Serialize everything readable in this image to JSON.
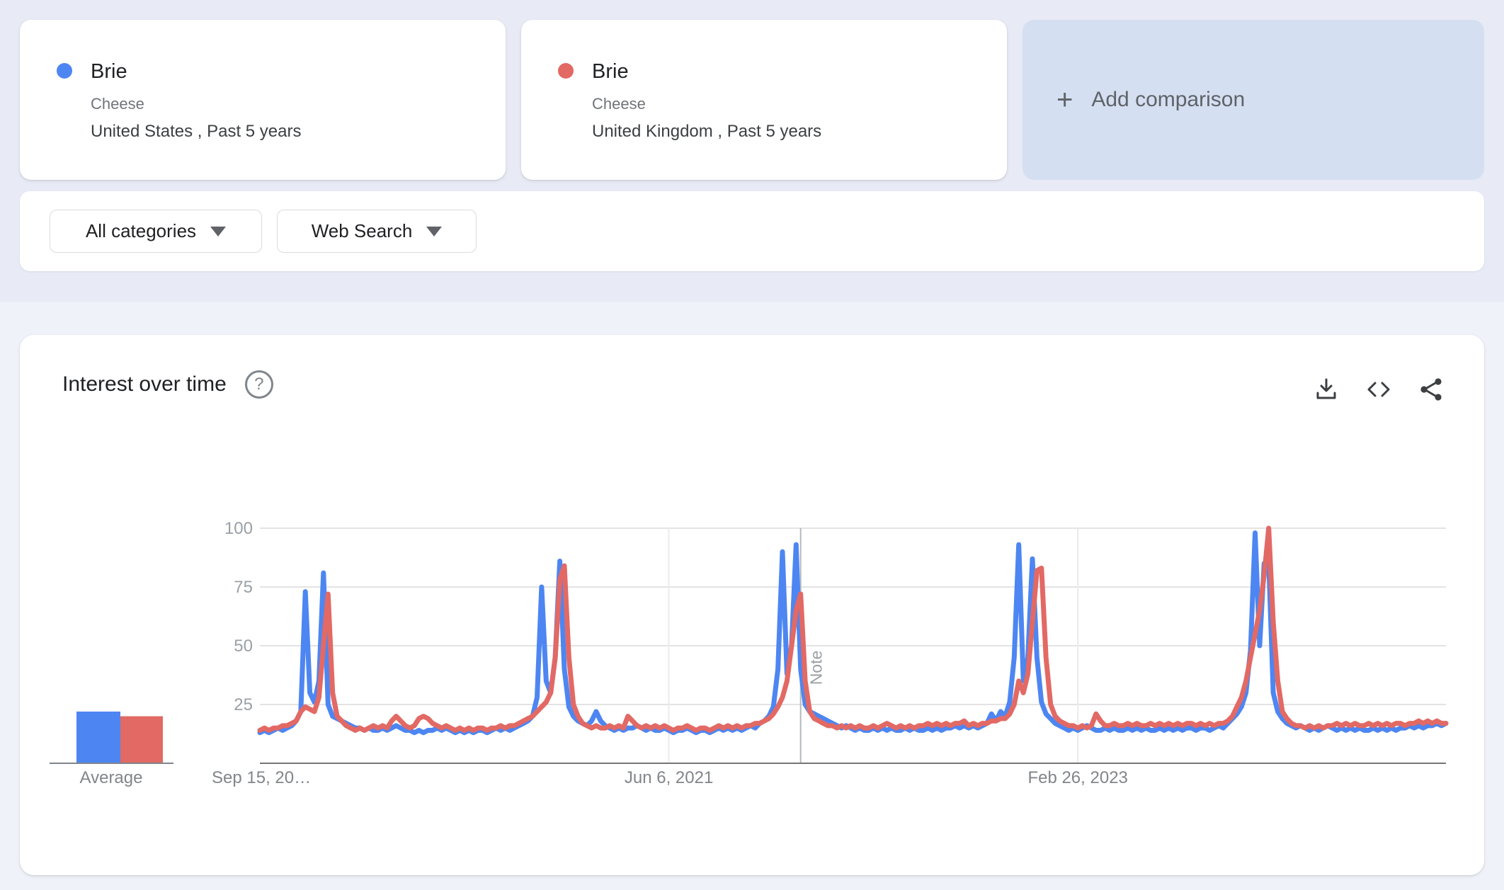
{
  "terms": [
    {
      "keyword": "Brie",
      "topic_type": "Cheese",
      "scope": "United States , Past 5 years",
      "color": "#4d86f2"
    },
    {
      "keyword": "Brie",
      "topic_type": "Cheese",
      "scope": "United Kingdom , Past 5 years",
      "color": "#e26964"
    }
  ],
  "add_comparison": {
    "plus": "+",
    "label": "Add comparison",
    "background": "#d5dff2"
  },
  "filters": {
    "category": "All categories",
    "search_type": "Web Search"
  },
  "chart_card": {
    "title": "Interest over time",
    "help_icon": "?",
    "toolbar_icons": [
      "download-icon",
      "embed-icon",
      "share-icon"
    ]
  },
  "average_module": {
    "label": "Average",
    "bars": [
      {
        "name": "Brie United States",
        "value": 22,
        "color": "#4d86f2"
      },
      {
        "name": "Brie United Kingdom",
        "value": 20,
        "color": "#e26964"
      }
    ]
  },
  "chart_data": {
    "type": "line",
    "title": "Interest over time",
    "ylabel": "",
    "xlabel": "",
    "ylim": [
      0,
      100
    ],
    "y_ticks": [
      25,
      50,
      75,
      100
    ],
    "grid": true,
    "legend_position": "none",
    "x_tick_labels": [
      "Sep 15, 20…",
      "Jun 6, 2021",
      "Feb 26, 2023"
    ],
    "x_tick_positions": [
      0,
      90,
      180
    ],
    "note_annotation": {
      "label": "Note",
      "position": 119
    },
    "series": [
      {
        "name": "Brie · United States",
        "color": "#4d86f2",
        "values": [
          13,
          14,
          13,
          14,
          15,
          14,
          15,
          16,
          18,
          22,
          73,
          30,
          26,
          35,
          81,
          25,
          20,
          19,
          18,
          17,
          16,
          15,
          15,
          14,
          15,
          14,
          14,
          15,
          14,
          15,
          16,
          15,
          14,
          14,
          13,
          14,
          13,
          14,
          14,
          15,
          14,
          15,
          14,
          13,
          14,
          13,
          14,
          13,
          14,
          14,
          13,
          14,
          15,
          14,
          15,
          14,
          15,
          16,
          17,
          18,
          20,
          28,
          75,
          35,
          30,
          45,
          86,
          40,
          24,
          20,
          18,
          17,
          16,
          18,
          22,
          18,
          16,
          15,
          14,
          15,
          14,
          15,
          15,
          16,
          15,
          14,
          15,
          14,
          14,
          15,
          14,
          13,
          14,
          14,
          15,
          14,
          13,
          14,
          14,
          13,
          14,
          15,
          14,
          15,
          14,
          15,
          14,
          15,
          16,
          15,
          17,
          18,
          20,
          24,
          40,
          90,
          38,
          50,
          93,
          40,
          25,
          22,
          21,
          20,
          19,
          18,
          17,
          16,
          15,
          16,
          15,
          14,
          15,
          14,
          14,
          15,
          14,
          15,
          14,
          15,
          14,
          14,
          15,
          14,
          15,
          14,
          14,
          15,
          14,
          15,
          14,
          15,
          15,
          16,
          15,
          16,
          15,
          16,
          15,
          16,
          17,
          21,
          18,
          22,
          20,
          26,
          45,
          93,
          35,
          45,
          87,
          45,
          26,
          21,
          19,
          17,
          16,
          15,
          14,
          15,
          14,
          15,
          16,
          15,
          14,
          14,
          15,
          14,
          15,
          14,
          14,
          15,
          14,
          15,
          14,
          15,
          14,
          14,
          15,
          14,
          15,
          14,
          15,
          14,
          15,
          15,
          14,
          15,
          15,
          14,
          15,
          16,
          15,
          17,
          19,
          21,
          24,
          30,
          48,
          98,
          50,
          85,
          86,
          30,
          22,
          19,
          17,
          16,
          15,
          16,
          15,
          14,
          15,
          14,
          15,
          16,
          15,
          14,
          15,
          14,
          15,
          14,
          15,
          14,
          14,
          15,
          14,
          15,
          14,
          15,
          14,
          15,
          15,
          16,
          15,
          16,
          15,
          16,
          16,
          17,
          16,
          17
        ]
      },
      {
        "name": "Brie · United Kingdom",
        "color": "#e26964",
        "values": [
          14,
          15,
          14,
          15,
          15,
          16,
          16,
          17,
          18,
          22,
          24,
          23,
          22,
          28,
          50,
          72,
          30,
          20,
          18,
          16,
          15,
          14,
          15,
          14,
          15,
          16,
          15,
          16,
          15,
          18,
          20,
          18,
          16,
          15,
          16,
          19,
          20,
          19,
          17,
          16,
          15,
          16,
          15,
          14,
          15,
          14,
          15,
          14,
          15,
          15,
          14,
          15,
          15,
          16,
          15,
          16,
          16,
          17,
          18,
          19,
          20,
          22,
          24,
          26,
          30,
          45,
          78,
          84,
          45,
          25,
          20,
          17,
          16,
          15,
          16,
          15,
          15,
          16,
          15,
          16,
          15,
          20,
          18,
          16,
          15,
          16,
          15,
          16,
          15,
          16,
          15,
          14,
          15,
          15,
          16,
          15,
          14,
          15,
          15,
          14,
          15,
          16,
          15,
          16,
          15,
          16,
          15,
          16,
          16,
          17,
          17,
          18,
          19,
          21,
          24,
          28,
          35,
          50,
          65,
          72,
          35,
          22,
          19,
          18,
          17,
          16,
          16,
          15,
          16,
          15,
          16,
          15,
          16,
          15,
          15,
          16,
          15,
          16,
          17,
          16,
          15,
          16,
          15,
          16,
          15,
          16,
          16,
          17,
          16,
          17,
          16,
          17,
          16,
          17,
          17,
          18,
          16,
          17,
          16,
          17,
          17,
          18,
          18,
          19,
          19,
          21,
          25,
          35,
          30,
          38,
          60,
          82,
          83,
          45,
          25,
          20,
          18,
          17,
          16,
          16,
          15,
          16,
          15,
          16,
          21,
          18,
          16,
          16,
          17,
          16,
          16,
          17,
          16,
          17,
          16,
          16,
          17,
          16,
          17,
          16,
          17,
          16,
          17,
          16,
          17,
          17,
          16,
          17,
          16,
          17,
          16,
          17,
          17,
          18,
          20,
          24,
          28,
          35,
          45,
          55,
          65,
          80,
          100,
          60,
          35,
          22,
          19,
          17,
          16,
          16,
          15,
          16,
          15,
          16,
          15,
          16,
          16,
          17,
          16,
          17,
          16,
          17,
          16,
          16,
          17,
          16,
          17,
          16,
          17,
          16,
          17,
          17,
          16,
          17,
          17,
          18,
          17,
          18,
          17,
          18,
          17,
          17
        ]
      }
    ]
  }
}
